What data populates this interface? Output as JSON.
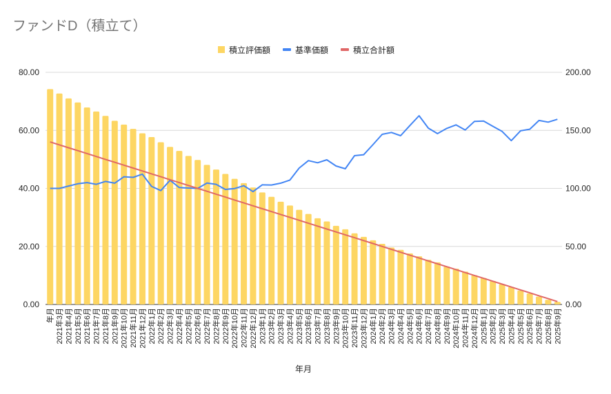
{
  "chart_data": {
    "type": "bar",
    "title": "ファンドD（積立て）",
    "xlabel": "年月",
    "ylabel": "",
    "y2label": "",
    "ylim": [
      0,
      80
    ],
    "y2lim": [
      0,
      200
    ],
    "yticks": [
      "0.00",
      "20.00",
      "40.00",
      "60.00",
      "80.00"
    ],
    "y2ticks": [
      "0.00",
      "50.00",
      "100.00",
      "150.00",
      "200.00"
    ],
    "grid": true,
    "legend_position": "top",
    "categories": [
      "年月",
      "2021年3月",
      "2021年4月",
      "2021年5月",
      "2021年6月",
      "2021年7月",
      "2021年8月",
      "2021年9月",
      "2021年10月",
      "2021年11月",
      "2021年12月",
      "2022年1月",
      "2022年2月",
      "2022年3月",
      "2022年4月",
      "2022年5月",
      "2022年6月",
      "2022年7月",
      "2022年8月",
      "2022年9月",
      "2022年10月",
      "2022年11月",
      "2022年12月",
      "2023年1月",
      "2023年2月",
      "2023年3月",
      "2023年4月",
      "2023年5月",
      "2023年6月",
      "2023年7月",
      "2023年8月",
      "2023年9月",
      "2023年10月",
      "2023年11月",
      "2023年12月",
      "2024年1月",
      "2024年2月",
      "2024年3月",
      "2024年4月",
      "2024年5月",
      "2024年6月",
      "2024年7月",
      "2024年8月",
      "2024年9月",
      "2024年10月",
      "2024年11月",
      "2024年12月",
      "2025年1月",
      "2025年2月",
      "2025年3月",
      "2025年4月",
      "2025年5月",
      "2025年6月",
      "2025年7月",
      "2025年8月",
      "2025年9月"
    ],
    "series": [
      {
        "name": "積立評価額",
        "type": "bar",
        "axis": "left",
        "color": "#fdd663",
        "values": [
          74.2,
          72.7,
          71.0,
          69.6,
          67.9,
          66.5,
          65.0,
          63.3,
          62.0,
          60.5,
          59.0,
          57.7,
          55.9,
          54.3,
          52.9,
          51.2,
          49.8,
          48.1,
          46.5,
          45.0,
          43.3,
          41.8,
          40.3,
          38.6,
          37.1,
          35.4,
          34.1,
          32.6,
          31.2,
          29.7,
          28.6,
          27.1,
          25.9,
          24.5,
          23.3,
          22.1,
          20.9,
          19.6,
          18.8,
          17.6,
          16.6,
          15.4,
          14.5,
          13.1,
          12.3,
          11.3,
          10.1,
          9.1,
          8.1,
          7.0,
          6.0,
          4.8,
          3.8,
          2.7,
          1.6,
          0.9
        ]
      },
      {
        "name": "基準価額",
        "type": "line",
        "axis": "right",
        "color": "#4285f4",
        "values": [
          100,
          100,
          102,
          104,
          105,
          103.5,
          106,
          104.5,
          110,
          109.5,
          112.3,
          101.7,
          98.1,
          107,
          100.7,
          100.3,
          100,
          104.6,
          103.5,
          99.1,
          99.9,
          102.3,
          97.2,
          103.1,
          102.9,
          104.5,
          107.2,
          117.5,
          123.9,
          122.1,
          124.6,
          119.3,
          116.9,
          128.2,
          129,
          137.7,
          146.6,
          148.2,
          145.4,
          154.1,
          162.6,
          151.9,
          147.2,
          151.7,
          154.7,
          150.3,
          157.7,
          158.0,
          153.5,
          149.1,
          141.1,
          149.6,
          151,
          158.5,
          157.1,
          159.5
        ]
      },
      {
        "name": "積立合計額",
        "type": "line",
        "axis": "left",
        "color": "#e06666",
        "values": [
          56,
          55,
          54,
          53,
          52,
          51,
          50,
          49,
          48,
          47,
          46,
          45,
          44,
          43,
          42,
          41,
          40,
          39,
          38,
          37,
          36,
          35,
          34,
          33,
          32,
          31,
          30,
          29,
          28,
          27,
          26,
          25,
          24,
          23,
          22,
          21,
          20,
          19,
          18,
          17,
          16,
          15,
          14,
          13,
          12,
          11,
          10,
          9,
          8,
          7,
          6,
          5,
          4,
          3,
          2,
          1
        ]
      }
    ]
  }
}
